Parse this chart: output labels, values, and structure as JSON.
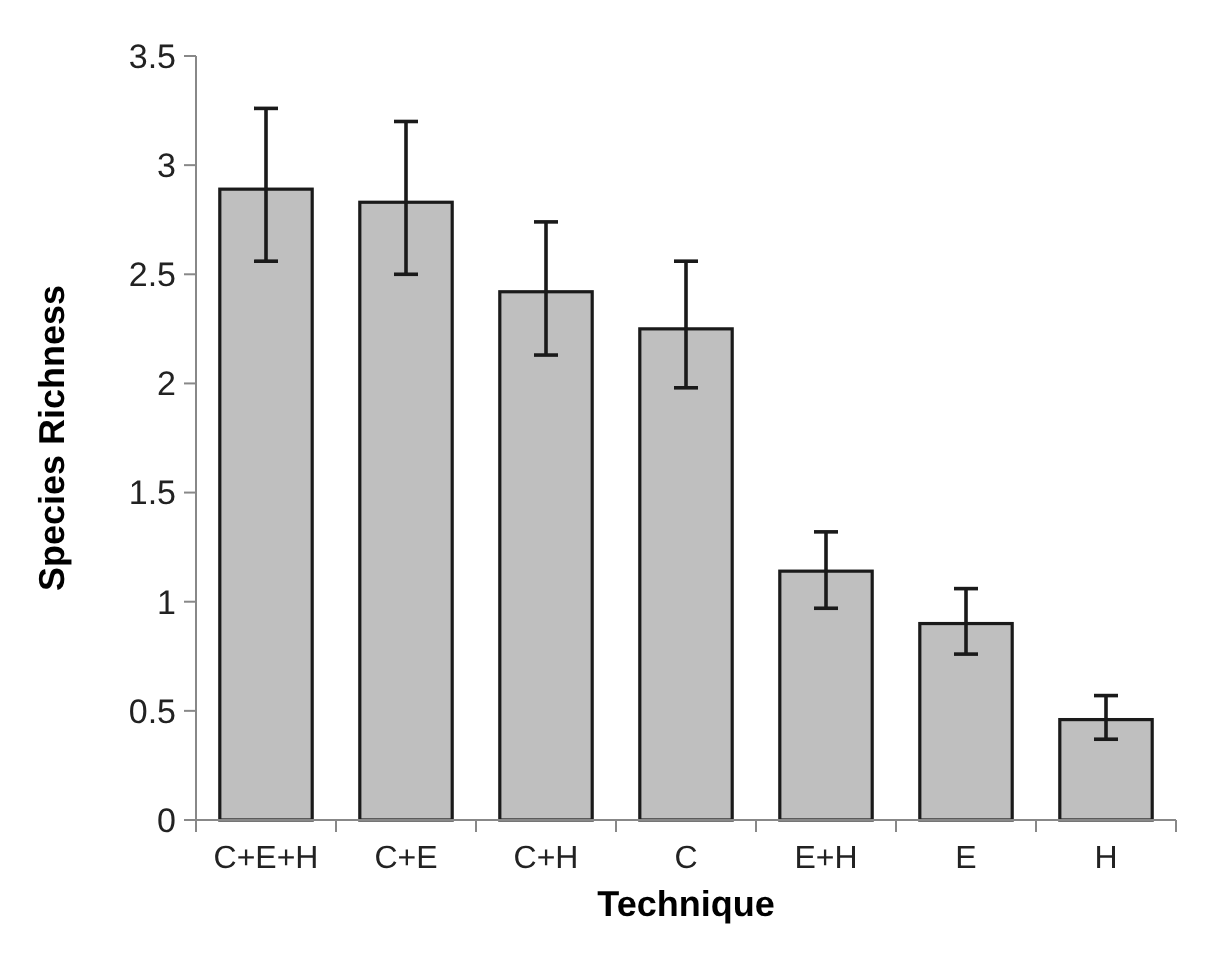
{
  "chart_data": {
    "type": "bar",
    "xlabel": "Technique",
    "ylabel": "Species Richness",
    "categories": [
      "C+E+H",
      "C+E",
      "C+H",
      "C",
      "E+H",
      "E",
      "H"
    ],
    "values": [
      2.89,
      2.83,
      2.42,
      2.25,
      1.14,
      0.9,
      0.46
    ],
    "errors": [
      [
        2.56,
        3.26
      ],
      [
        2.5,
        3.2
      ],
      [
        2.13,
        2.74
      ],
      [
        1.98,
        2.56
      ],
      [
        0.97,
        1.32
      ],
      [
        0.76,
        1.06
      ],
      [
        0.37,
        0.57
      ]
    ],
    "color": "#bfbfbf",
    "ylim": [
      0,
      3.5
    ],
    "yticks": [
      0,
      0.5,
      1,
      1.5,
      2,
      2.5,
      3,
      3.5
    ],
    "grid": false
  }
}
